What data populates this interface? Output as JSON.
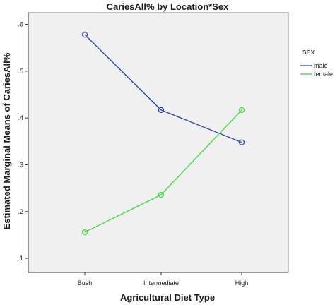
{
  "chart_data": {
    "type": "line",
    "title": "CariesAll% by Location*Sex",
    "xlabel": "Agricultural Diet Type",
    "ylabel": "Estimated Marginal Means of CariesAll%",
    "categories": [
      "Bush",
      "Intermediate",
      "High"
    ],
    "ylim": [
      0.07,
      0.625
    ],
    "yticks": [
      0.1,
      0.2,
      0.3,
      0.4,
      0.5,
      0.6
    ],
    "ytick_labels": [
      ".1",
      ".2",
      ".3",
      ".4",
      ".5",
      ".6"
    ],
    "grid": false,
    "legend": {
      "title": "sex",
      "position": "right"
    },
    "series": [
      {
        "name": "male",
        "values": [
          0.578,
          0.417,
          0.348
        ],
        "color": "#2a3ea8",
        "marker": "circle"
      },
      {
        "name": "female",
        "values": [
          0.156,
          0.236,
          0.417
        ],
        "color": "#33dd33",
        "marker": "circle"
      }
    ]
  },
  "colors": {
    "plot_background": "#f0f0f0",
    "axis": "#3a3a3a"
  }
}
